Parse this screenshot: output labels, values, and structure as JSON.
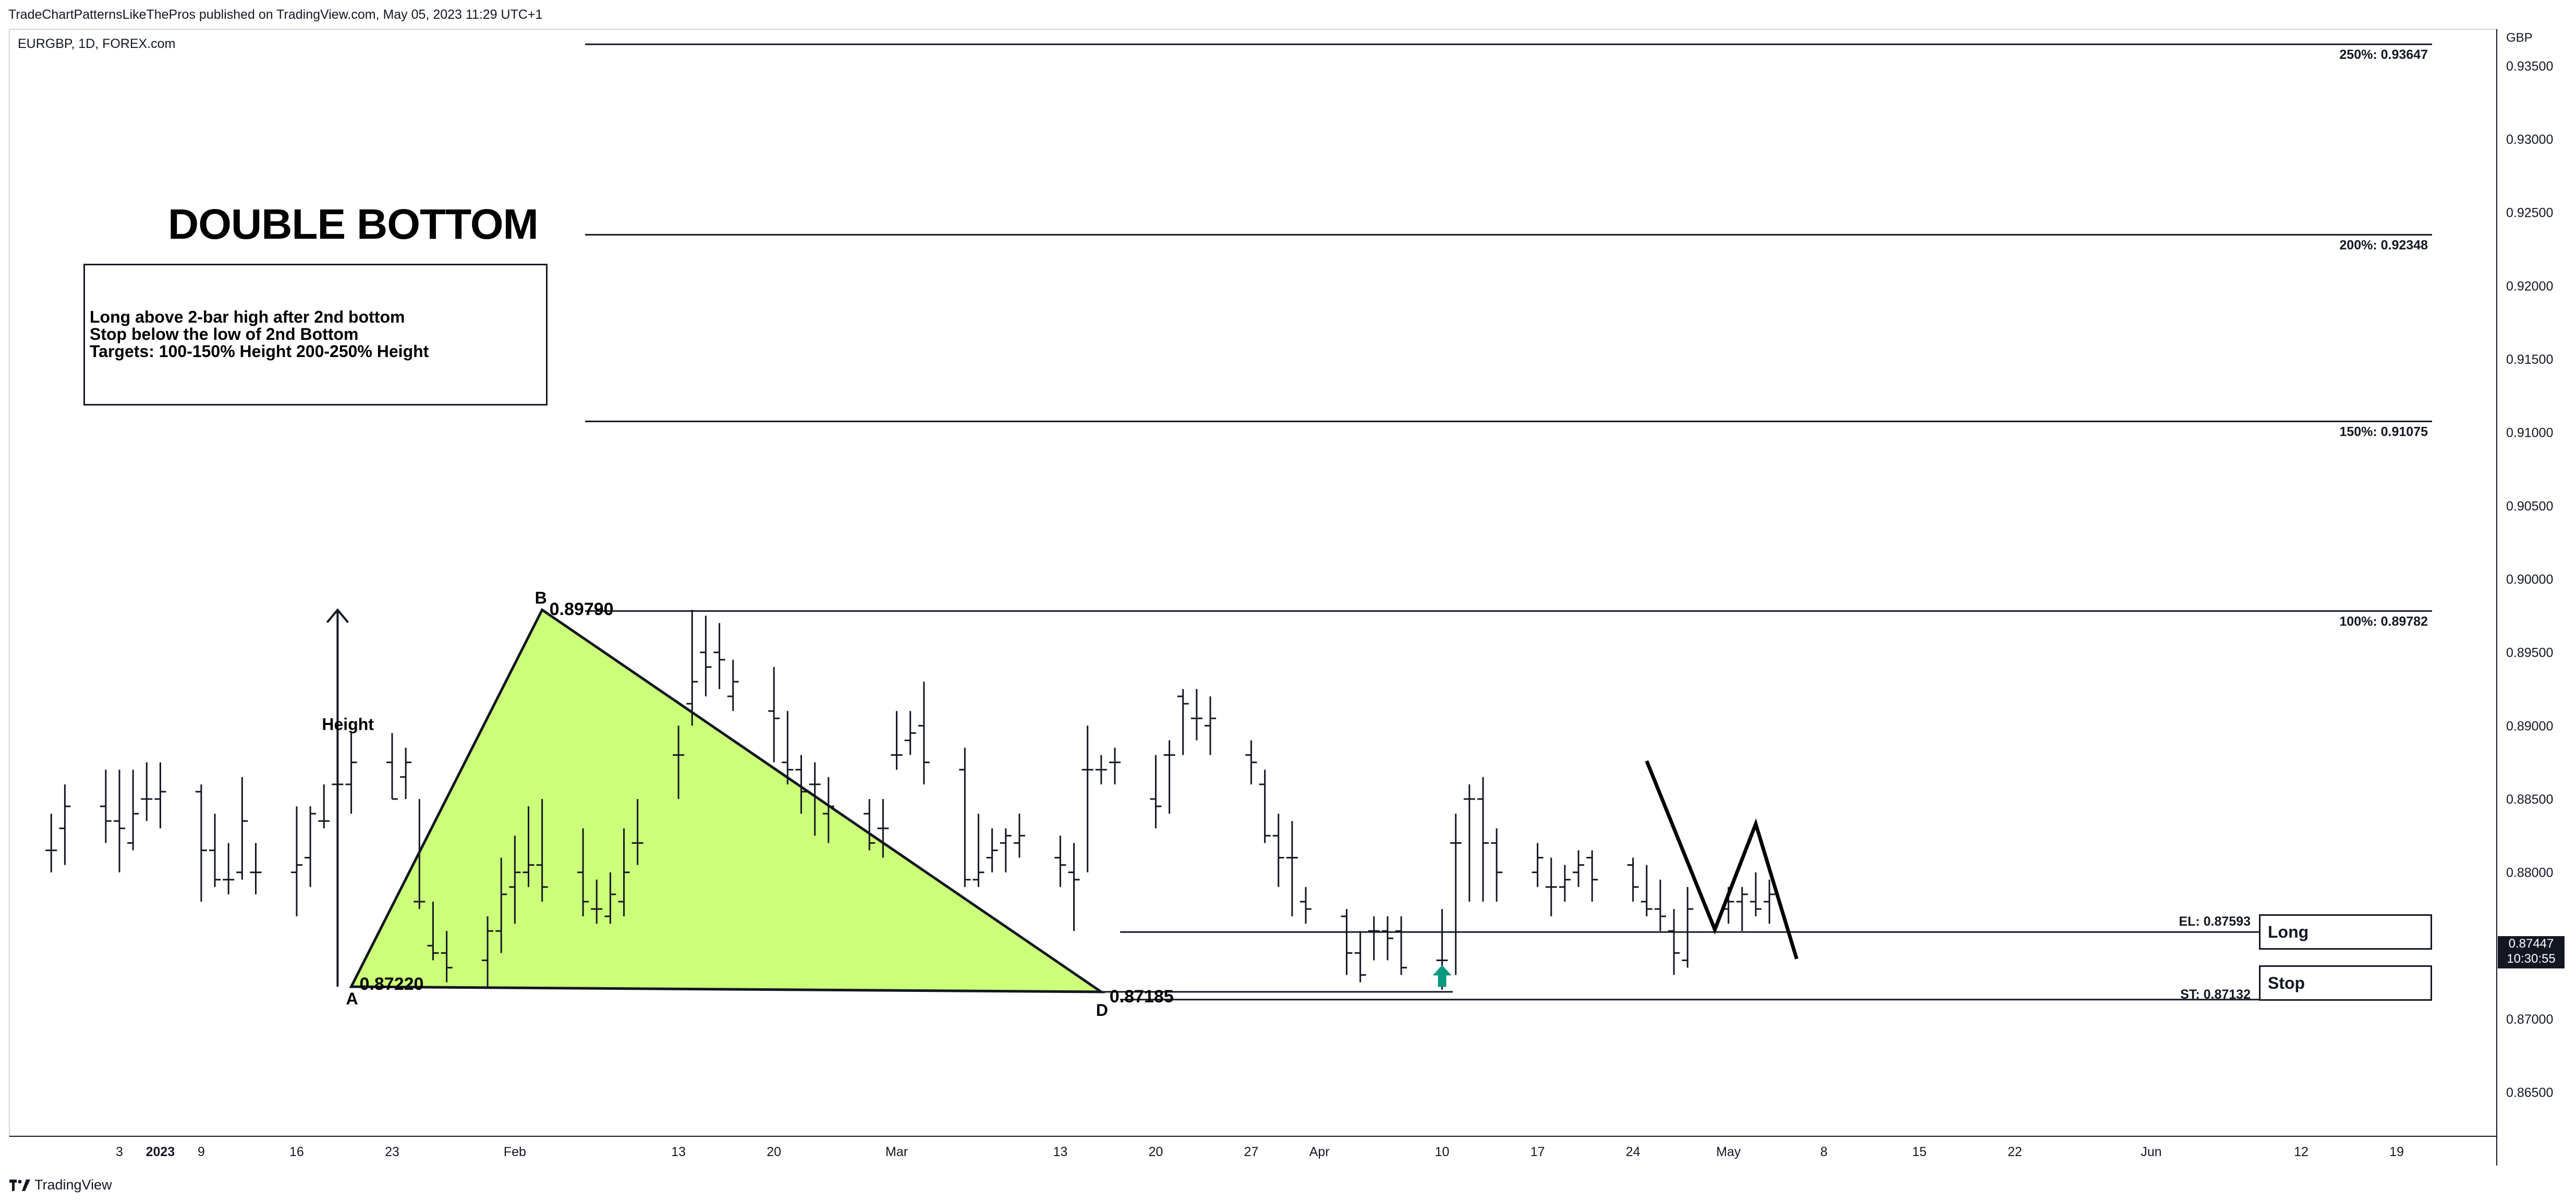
{
  "header": {
    "published_by": "TradeChartPatternsLikeThePros published on TradingView.com, May 05, 2023 11:29 UTC+1",
    "symbol": "EURGBP, 1D, FOREX.com"
  },
  "pattern": {
    "title": "DOUBLE BOTTOM",
    "rules": [
      "Long above 2-bar high after 2nd bottom",
      "Stop below the low of 2nd Bottom",
      "Targets: 100-150% Height 200-250% Height"
    ],
    "height_label": "Height",
    "point_a": "A",
    "point_b": "B",
    "point_d": "D",
    "price_a": "0.87220",
    "price_b": "0.89790",
    "price_d": "0.87185",
    "triangle_color": "#ccff7a",
    "arrow_color": "#089981"
  },
  "orders": {
    "entry_label": "EL: 0.87593",
    "entry_text": "Long",
    "stop_label": "ST: 0.87132",
    "stop_text": "Stop"
  },
  "last_price": {
    "price": "0.87447",
    "countdown": "10:30:55"
  },
  "footer": {
    "brand": "TradingView"
  },
  "chart_data": {
    "type": "ohlc",
    "currency": "GBP",
    "yaxis_ticks": [
      "0.93500",
      "0.93000",
      "0.92500",
      "0.92000",
      "0.91500",
      "0.91000",
      "0.90500",
      "0.90000",
      "0.89500",
      "0.89000",
      "0.88500",
      "0.88000",
      "0.87500",
      "0.87000",
      "0.86500"
    ],
    "yaxis_tick_values": [
      0.935,
      0.93,
      0.925,
      0.92,
      0.915,
      0.91,
      0.905,
      0.9,
      0.895,
      0.89,
      0.885,
      0.88,
      0.875,
      0.87,
      0.865
    ],
    "ylim": [
      0.862,
      0.9375
    ],
    "xaxis_ticks": [
      "3",
      "2023",
      "9",
      "16",
      "23",
      "Feb",
      "13",
      "20",
      "Mar",
      "13",
      "20",
      "27",
      "Apr",
      "10",
      "17",
      "24",
      "May",
      "8",
      "15",
      "22",
      "Jun",
      "12",
      "19"
    ],
    "xaxis_tick_days": [
      "2023-01-03",
      "2023-01-06",
      "2023-01-09",
      "2023-01-16",
      "2023-01-23",
      "2023-02-01",
      "2023-02-13",
      "2023-02-20",
      "2023-03-01",
      "2023-03-13",
      "2023-03-20",
      "2023-03-27",
      "2023-04-01",
      "2023-04-10",
      "2023-04-17",
      "2023-04-24",
      "2023-05-01",
      "2023-05-08",
      "2023-05-15",
      "2023-05-22",
      "2023-06-01",
      "2023-06-12",
      "2023-06-19"
    ],
    "fib_levels": [
      {
        "label": "250%: 0.93647",
        "value": 0.93647
      },
      {
        "label": "200%: 0.92348",
        "value": 0.92348
      },
      {
        "label": "150%: 0.91075",
        "value": 0.91075
      },
      {
        "label": "100%: 0.89782",
        "value": 0.89782
      }
    ],
    "entry_level": 0.87593,
    "stop_level": 0.87132,
    "last_close": 0.87447,
    "pattern_points": {
      "A": {
        "date": "2023-01-20",
        "price": 0.8722
      },
      "B": {
        "date": "2023-02-03",
        "price": 0.8979
      },
      "D": {
        "date": "2023-03-16",
        "price": 0.87185
      }
    },
    "projection_path": [
      {
        "date": "2023-04-25",
        "price": 0.8876
      },
      {
        "date": "2023-04-30",
        "price": 0.8761
      },
      {
        "date": "2023-05-03",
        "price": 0.8833
      },
      {
        "date": "2023-05-06",
        "price": 0.8741
      }
    ],
    "bars": [
      {
        "date": "2022-12-29",
        "o": 0.8815,
        "h": 0.884,
        "l": 0.88,
        "c": 0.8815
      },
      {
        "date": "2022-12-30",
        "o": 0.883,
        "h": 0.886,
        "l": 0.8805,
        "c": 0.8845
      },
      {
        "date": "2023-01-02",
        "o": 0.8845,
        "h": 0.887,
        "l": 0.882,
        "c": 0.8835
      },
      {
        "date": "2023-01-03",
        "o": 0.8835,
        "h": 0.887,
        "l": 0.88,
        "c": 0.883
      },
      {
        "date": "2023-01-04",
        "o": 0.882,
        "h": 0.887,
        "l": 0.8815,
        "c": 0.884
      },
      {
        "date": "2023-01-05",
        "o": 0.885,
        "h": 0.8875,
        "l": 0.8835,
        "c": 0.885
      },
      {
        "date": "2023-01-06",
        "o": 0.885,
        "h": 0.8875,
        "l": 0.883,
        "c": 0.8855
      },
      {
        "date": "2023-01-09",
        "o": 0.8855,
        "h": 0.886,
        "l": 0.878,
        "c": 0.8815
      },
      {
        "date": "2023-01-10",
        "o": 0.8815,
        "h": 0.884,
        "l": 0.879,
        "c": 0.8795
      },
      {
        "date": "2023-01-11",
        "o": 0.8795,
        "h": 0.882,
        "l": 0.8785,
        "c": 0.8795
      },
      {
        "date": "2023-01-12",
        "o": 0.88,
        "h": 0.8865,
        "l": 0.8795,
        "c": 0.8835
      },
      {
        "date": "2023-01-13",
        "o": 0.88,
        "h": 0.882,
        "l": 0.8785,
        "c": 0.88
      },
      {
        "date": "2023-01-16",
        "o": 0.88,
        "h": 0.8845,
        "l": 0.877,
        "c": 0.8805
      },
      {
        "date": "2023-01-17",
        "o": 0.881,
        "h": 0.8845,
        "l": 0.879,
        "c": 0.884
      },
      {
        "date": "2023-01-18",
        "o": 0.8835,
        "h": 0.886,
        "l": 0.883,
        "c": 0.8835
      },
      {
        "date": "2023-01-19",
        "o": 0.886,
        "h": 0.889,
        "l": 0.884,
        "c": 0.886
      },
      {
        "date": "2023-01-20",
        "o": 0.886,
        "h": 0.8895,
        "l": 0.884,
        "c": 0.8875
      },
      {
        "date": "2023-01-23",
        "o": 0.8875,
        "h": 0.8895,
        "l": 0.885,
        "c": 0.885
      },
      {
        "date": "2023-01-24",
        "o": 0.8865,
        "h": 0.8885,
        "l": 0.885,
        "c": 0.8875
      },
      {
        "date": "2023-01-25",
        "o": 0.878,
        "h": 0.885,
        "l": 0.8775,
        "c": 0.878
      },
      {
        "date": "2023-01-26",
        "o": 0.875,
        "h": 0.878,
        "l": 0.874,
        "c": 0.8745
      },
      {
        "date": "2023-01-27",
        "o": 0.8745,
        "h": 0.876,
        "l": 0.8725,
        "c": 0.8735
      },
      {
        "date": "2023-01-30",
        "o": 0.874,
        "h": 0.877,
        "l": 0.8722,
        "c": 0.876
      },
      {
        "date": "2023-01-31",
        "o": 0.876,
        "h": 0.881,
        "l": 0.8745,
        "c": 0.8785
      },
      {
        "date": "2023-02-01",
        "o": 0.879,
        "h": 0.8825,
        "l": 0.8765,
        "c": 0.88
      },
      {
        "date": "2023-02-02",
        "o": 0.88,
        "h": 0.8845,
        "l": 0.879,
        "c": 0.8805
      },
      {
        "date": "2023-02-03",
        "o": 0.8805,
        "h": 0.885,
        "l": 0.878,
        "c": 0.879
      },
      {
        "date": "2023-02-06",
        "o": 0.88,
        "h": 0.883,
        "l": 0.877,
        "c": 0.878
      },
      {
        "date": "2023-02-07",
        "o": 0.8775,
        "h": 0.8795,
        "l": 0.8765,
        "c": 0.8775
      },
      {
        "date": "2023-02-08",
        "o": 0.877,
        "h": 0.88,
        "l": 0.8765,
        "c": 0.8785
      },
      {
        "date": "2023-02-09",
        "o": 0.878,
        "h": 0.883,
        "l": 0.877,
        "c": 0.88
      },
      {
        "date": "2023-02-10",
        "o": 0.882,
        "h": 0.885,
        "l": 0.8805,
        "c": 0.882
      },
      {
        "date": "2023-02-13",
        "o": 0.888,
        "h": 0.89,
        "l": 0.885,
        "c": 0.888
      },
      {
        "date": "2023-02-14",
        "o": 0.8915,
        "h": 0.8979,
        "l": 0.89,
        "c": 0.893
      },
      {
        "date": "2023-02-15",
        "o": 0.895,
        "h": 0.8975,
        "l": 0.892,
        "c": 0.894
      },
      {
        "date": "2023-02-16",
        "o": 0.895,
        "h": 0.897,
        "l": 0.8925,
        "c": 0.8945
      },
      {
        "date": "2023-02-17",
        "o": 0.892,
        "h": 0.8945,
        "l": 0.891,
        "c": 0.893
      },
      {
        "date": "2023-02-20",
        "o": 0.891,
        "h": 0.894,
        "l": 0.8875,
        "c": 0.8905
      },
      {
        "date": "2023-02-21",
        "o": 0.8875,
        "h": 0.891,
        "l": 0.886,
        "c": 0.887
      },
      {
        "date": "2023-02-22",
        "o": 0.887,
        "h": 0.888,
        "l": 0.884,
        "c": 0.8855
      },
      {
        "date": "2023-02-23",
        "o": 0.886,
        "h": 0.8875,
        "l": 0.8825,
        "c": 0.886
      },
      {
        "date": "2023-02-24",
        "o": 0.884,
        "h": 0.8865,
        "l": 0.882,
        "c": 0.8845
      },
      {
        "date": "2023-02-27",
        "o": 0.884,
        "h": 0.885,
        "l": 0.8815,
        "c": 0.882
      },
      {
        "date": "2023-02-28",
        "o": 0.883,
        "h": 0.885,
        "l": 0.881,
        "c": 0.883
      },
      {
        "date": "2023-03-01",
        "o": 0.888,
        "h": 0.891,
        "l": 0.887,
        "c": 0.888
      },
      {
        "date": "2023-03-02",
        "o": 0.889,
        "h": 0.891,
        "l": 0.888,
        "c": 0.8895
      },
      {
        "date": "2023-03-03",
        "o": 0.89,
        "h": 0.893,
        "l": 0.886,
        "c": 0.8875
      },
      {
        "date": "2023-03-06",
        "o": 0.887,
        "h": 0.8885,
        "l": 0.879,
        "c": 0.8795
      },
      {
        "date": "2023-03-07",
        "o": 0.8795,
        "h": 0.884,
        "l": 0.879,
        "c": 0.88
      },
      {
        "date": "2023-03-08",
        "o": 0.881,
        "h": 0.883,
        "l": 0.88,
        "c": 0.8815
      },
      {
        "date": "2023-03-09",
        "o": 0.882,
        "h": 0.883,
        "l": 0.88,
        "c": 0.8825
      },
      {
        "date": "2023-03-10",
        "o": 0.882,
        "h": 0.884,
        "l": 0.881,
        "c": 0.8825
      },
      {
        "date": "2023-03-13",
        "o": 0.881,
        "h": 0.8825,
        "l": 0.879,
        "c": 0.8805
      },
      {
        "date": "2023-03-14",
        "o": 0.88,
        "h": 0.882,
        "l": 0.876,
        "c": 0.8795
      },
      {
        "date": "2023-03-15",
        "o": 0.887,
        "h": 0.89,
        "l": 0.88,
        "c": 0.887
      },
      {
        "date": "2023-03-16",
        "o": 0.887,
        "h": 0.888,
        "l": 0.886,
        "c": 0.887
      },
      {
        "date": "2023-03-17",
        "o": 0.8875,
        "h": 0.8885,
        "l": 0.886,
        "c": 0.8875
      },
      {
        "date": "2023-03-20",
        "o": 0.885,
        "h": 0.888,
        "l": 0.883,
        "c": 0.8845
      },
      {
        "date": "2023-03-21",
        "o": 0.888,
        "h": 0.889,
        "l": 0.884,
        "c": 0.888
      },
      {
        "date": "2023-03-22",
        "o": 0.892,
        "h": 0.8925,
        "l": 0.888,
        "c": 0.8915
      },
      {
        "date": "2023-03-23",
        "o": 0.8905,
        "h": 0.8925,
        "l": 0.889,
        "c": 0.8905
      },
      {
        "date": "2023-03-24",
        "o": 0.89,
        "h": 0.892,
        "l": 0.888,
        "c": 0.8905
      },
      {
        "date": "2023-03-27",
        "o": 0.888,
        "h": 0.889,
        "l": 0.886,
        "c": 0.8875
      },
      {
        "date": "2023-03-28",
        "o": 0.886,
        "h": 0.887,
        "l": 0.882,
        "c": 0.8825
      },
      {
        "date": "2023-03-29",
        "o": 0.8825,
        "h": 0.884,
        "l": 0.879,
        "c": 0.881
      },
      {
        "date": "2023-03-30",
        "o": 0.881,
        "h": 0.8835,
        "l": 0.877,
        "c": 0.881
      },
      {
        "date": "2023-03-31",
        "o": 0.878,
        "h": 0.879,
        "l": 0.8765,
        "c": 0.8775
      },
      {
        "date": "2023-04-03",
        "o": 0.877,
        "h": 0.8775,
        "l": 0.873,
        "c": 0.8745
      },
      {
        "date": "2023-04-04",
        "o": 0.8745,
        "h": 0.876,
        "l": 0.8725,
        "c": 0.873
      },
      {
        "date": "2023-04-05",
        "o": 0.876,
        "h": 0.877,
        "l": 0.874,
        "c": 0.876
      },
      {
        "date": "2023-04-06",
        "o": 0.876,
        "h": 0.877,
        "l": 0.874,
        "c": 0.8755
      },
      {
        "date": "2023-04-07",
        "o": 0.876,
        "h": 0.877,
        "l": 0.873,
        "c": 0.8735
      },
      {
        "date": "2023-04-10",
        "o": 0.874,
        "h": 0.8775,
        "l": 0.872,
        "c": 0.874
      },
      {
        "date": "2023-04-11",
        "o": 0.882,
        "h": 0.884,
        "l": 0.873,
        "c": 0.882
      },
      {
        "date": "2023-04-12",
        "o": 0.885,
        "h": 0.886,
        "l": 0.878,
        "c": 0.885
      },
      {
        "date": "2023-04-13",
        "o": 0.885,
        "h": 0.8865,
        "l": 0.878,
        "c": 0.882
      },
      {
        "date": "2023-04-14",
        "o": 0.882,
        "h": 0.883,
        "l": 0.878,
        "c": 0.88
      },
      {
        "date": "2023-04-17",
        "o": 0.88,
        "h": 0.882,
        "l": 0.879,
        "c": 0.881
      },
      {
        "date": "2023-04-18",
        "o": 0.879,
        "h": 0.881,
        "l": 0.877,
        "c": 0.879
      },
      {
        "date": "2023-04-19",
        "o": 0.879,
        "h": 0.8805,
        "l": 0.878,
        "c": 0.8795
      },
      {
        "date": "2023-04-20",
        "o": 0.88,
        "h": 0.8815,
        "l": 0.879,
        "c": 0.8805
      },
      {
        "date": "2023-04-21",
        "o": 0.881,
        "h": 0.8815,
        "l": 0.878,
        "c": 0.8795
      },
      {
        "date": "2023-04-24",
        "o": 0.8805,
        "h": 0.881,
        "l": 0.878,
        "c": 0.879
      },
      {
        "date": "2023-04-25",
        "o": 0.878,
        "h": 0.8805,
        "l": 0.877,
        "c": 0.8775
      },
      {
        "date": "2023-04-26",
        "o": 0.8775,
        "h": 0.8795,
        "l": 0.876,
        "c": 0.877
      },
      {
        "date": "2023-04-27",
        "o": 0.876,
        "h": 0.8775,
        "l": 0.873,
        "c": 0.8745
      },
      {
        "date": "2023-04-28",
        "o": 0.874,
        "h": 0.879,
        "l": 0.8735,
        "c": 0.8775
      },
      {
        "date": "2023-05-01",
        "o": 0.8775,
        "h": 0.879,
        "l": 0.8765,
        "c": 0.878
      },
      {
        "date": "2023-05-02",
        "o": 0.878,
        "h": 0.879,
        "l": 0.876,
        "c": 0.8785
      },
      {
        "date": "2023-05-03",
        "o": 0.878,
        "h": 0.88,
        "l": 0.877,
        "c": 0.8775
      },
      {
        "date": "2023-05-04",
        "o": 0.878,
        "h": 0.8795,
        "l": 0.8765,
        "c": 0.8785
      }
    ]
  }
}
